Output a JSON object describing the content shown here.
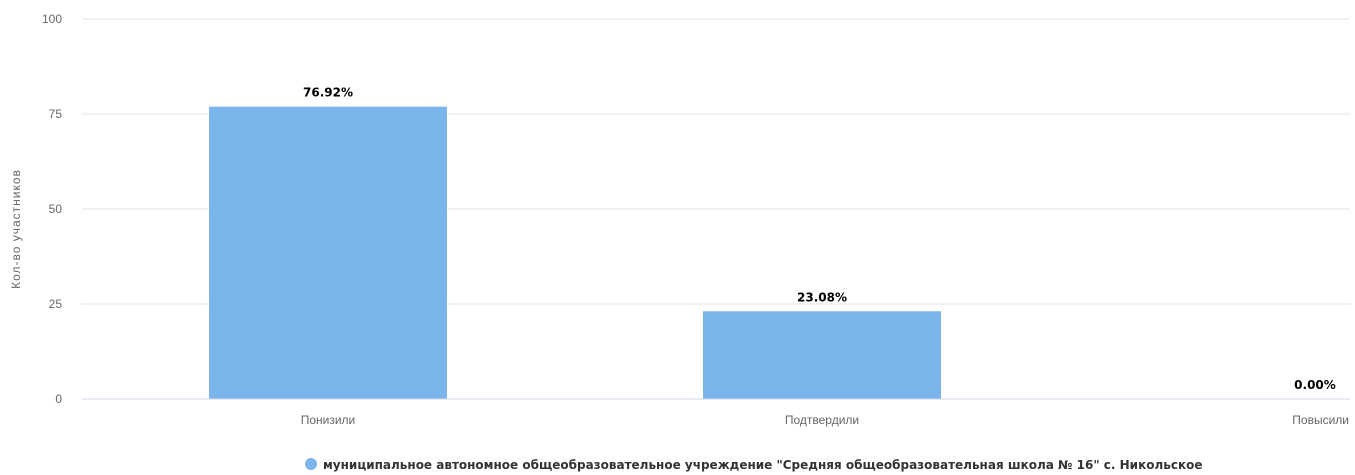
{
  "chart_data": {
    "type": "bar",
    "title": "",
    "xlabel": "",
    "ylabel": "Кол-во участников",
    "ylim": [
      0,
      100
    ],
    "yticks": [
      0,
      25,
      50,
      75,
      100
    ],
    "categories": [
      "Понизили",
      "Подтвердили",
      "Повысили"
    ],
    "series": [
      {
        "name": "муниципальное автономное общеобразовательное учреждение \"Средняя общеобразовательная школа № 16\" с. Никольское",
        "values": [
          76.92,
          23.08,
          0.0
        ],
        "data_labels": [
          "76.92%",
          "23.08%",
          "0.00%"
        ],
        "color": "#7cb5ec"
      }
    ],
    "grid": true,
    "legend_position": "bottom-center"
  }
}
